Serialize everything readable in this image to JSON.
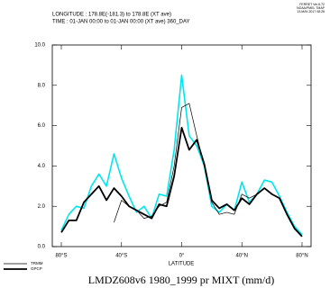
{
  "chart_data": {
    "type": "line",
    "header": [
      "LONGITUDE : 178.8E(-181.3) to 178.8E (XT ave)",
      "TIME : 01-JAN 00:00 to 01-JAN 00:00 (XT ave) 360_DAY"
    ],
    "stamp": [
      "FERRET Ver.6.72",
      "NOAA/PMEL TMAP",
      "13-MAY-2017 08:28"
    ],
    "title": "LMDZ608v6 1980_1999 pr MIXT (mm/d)",
    "xlabel": "LATITUDE",
    "x": [
      -80,
      -75,
      -70,
      -65,
      -60,
      -55,
      -50,
      -45,
      -40,
      -35,
      -30,
      -25,
      -20,
      -15,
      -10,
      -5,
      0,
      5,
      10,
      15,
      20,
      25,
      30,
      35,
      40,
      45,
      50,
      55,
      60,
      65,
      70,
      75,
      80
    ],
    "series": [
      {
        "color": "#00e5ee",
        "width": 1.6,
        "values": [
          0.8,
          1.6,
          2.0,
          1.9,
          3.0,
          3.6,
          3.0,
          4.6,
          3.4,
          2.5,
          1.7,
          2.0,
          1.4,
          2.6,
          2.5,
          4.8,
          8.5,
          5.5,
          5.0,
          4.0,
          2.0,
          1.7,
          2.1,
          1.8,
          3.2,
          2.2,
          2.6,
          3.3,
          3.2,
          2.5,
          1.7,
          1.0,
          0.6
        ]
      },
      {
        "name": "TRMM",
        "color": "#000000",
        "width": 0.7,
        "values": [
          null,
          null,
          null,
          null,
          null,
          null,
          null,
          1.2,
          2.3,
          2.0,
          1.8,
          1.4,
          1.5,
          2.0,
          2.2,
          4.0,
          6.9,
          7.1,
          5.5,
          4.0,
          2.2,
          1.6,
          1.7,
          1.6,
          2.6,
          2.4,
          2.6,
          null,
          null,
          null,
          null,
          null,
          null
        ]
      },
      {
        "name": "GPCP",
        "color": "#000000",
        "width": 1.8,
        "values": [
          0.7,
          1.3,
          1.3,
          2.2,
          2.6,
          3.0,
          2.3,
          2.9,
          2.5,
          2.0,
          1.8,
          1.6,
          1.4,
          2.1,
          2.0,
          3.5,
          5.9,
          4.8,
          5.3,
          4.1,
          2.3,
          1.9,
          2.1,
          1.8,
          2.4,
          2.1,
          2.6,
          2.9,
          2.6,
          2.4,
          1.6,
          0.9,
          0.5
        ]
      }
    ],
    "xlim": [
      -86,
      86
    ],
    "ylim": [
      0,
      10
    ],
    "xticks": [
      {
        "value": -80,
        "label": "80°S"
      },
      {
        "value": -40,
        "label": "40°S"
      },
      {
        "value": 0,
        "label": "0°"
      },
      {
        "value": 40,
        "label": "40°N"
      },
      {
        "value": 80,
        "label": "80°N"
      }
    ],
    "yticks": [
      {
        "value": 0,
        "label": "0.0"
      },
      {
        "value": 2,
        "label": "2.0"
      },
      {
        "value": 4,
        "label": "4.0"
      },
      {
        "value": 6,
        "label": "6.0"
      },
      {
        "value": 8,
        "label": "8.0"
      },
      {
        "value": 10,
        "label": "10.0"
      }
    ]
  }
}
